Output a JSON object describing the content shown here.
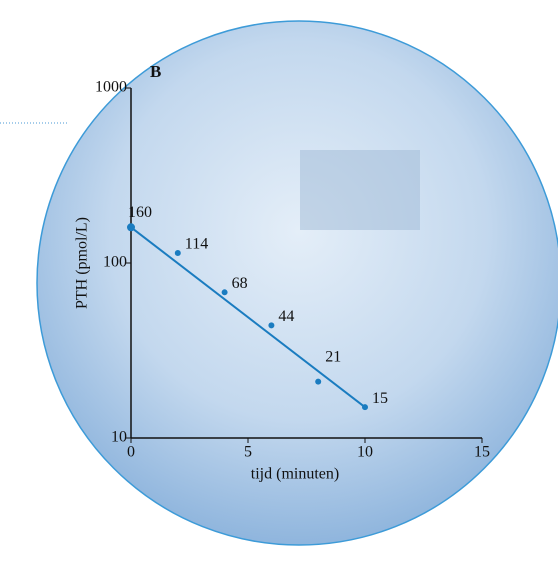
{
  "chart_data": {
    "type": "scatter",
    "title": "B",
    "x_label": "tijd (minuten)",
    "y_label": "PTH (pmol/L)",
    "log_y": true,
    "xlim": [
      0,
      15
    ],
    "xticks": [
      0,
      5,
      10,
      15
    ],
    "ylim": [
      10,
      1000
    ],
    "yticks": [
      10,
      100,
      1000
    ],
    "color": "#1a7cc0",
    "series": [
      {
        "color": "#1a7cc0",
        "mode": "points",
        "x": [
          0,
          2,
          4,
          6,
          8,
          10
        ],
        "values": [
          160,
          114,
          68,
          44,
          21,
          15
        ]
      },
      {
        "color": "#1a7cc0",
        "mode": "line",
        "x": [
          0,
          10
        ],
        "values": [
          160,
          15
        ]
      }
    ]
  }
}
